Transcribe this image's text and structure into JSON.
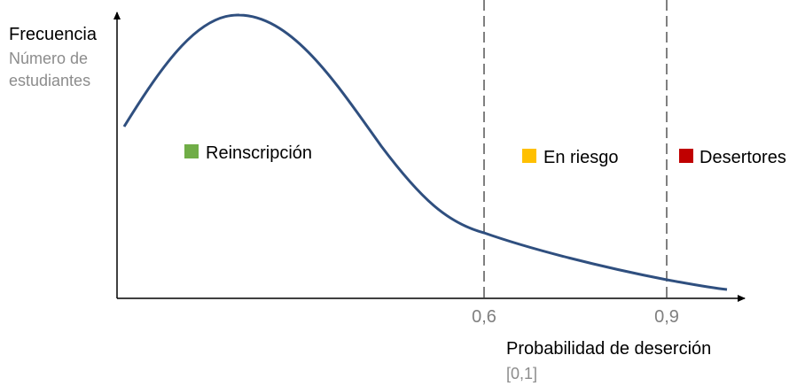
{
  "y_axis": {
    "label": "Frecuencia",
    "sublabel_line1": "Número de",
    "sublabel_line2": "estudiantes"
  },
  "x_axis": {
    "label": "Probabilidad de deserción",
    "range_label": "[0,1]"
  },
  "thresholds": [
    {
      "value": 0.6,
      "label": "0,6"
    },
    {
      "value": 0.9,
      "label": "0,9"
    }
  ],
  "zones": [
    {
      "label": "Reinscripción",
      "color": "#70ad47"
    },
    {
      "label": "En riesgo",
      "color": "#ffc000"
    },
    {
      "label": "Desertores",
      "color": "#c00000"
    }
  ],
  "colors": {
    "curve": "#2f4f7f",
    "axis": "#000000",
    "threshold_line": "#7f7f7f"
  }
}
